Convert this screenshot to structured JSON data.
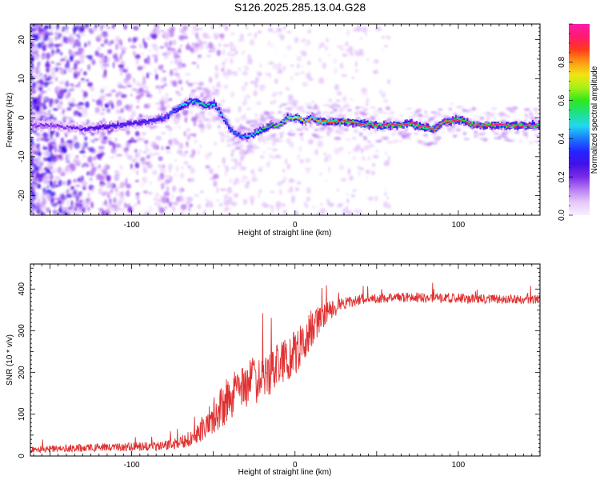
{
  "title": "S126.2025.285.13.04.G28",
  "colors": {
    "snr_line": "#e03030",
    "background": "#ffffff",
    "colormap": [
      "#f8f0ff",
      "#e6c9fb",
      "#b97ef3",
      "#7a2be8",
      "#4410e8",
      "#2424ff",
      "#1a78ff",
      "#22d8f0",
      "#1ee08a",
      "#2ee81a",
      "#a8f018",
      "#f0e414",
      "#ff9a14",
      "#ff3a1a",
      "#ff1a6e",
      "#ff1aa8"
    ]
  },
  "chart_data": [
    {
      "type": "heatmap",
      "title": "S126.2025.285.13.04.G28",
      "xlabel": "Height of straight line (km)",
      "ylabel": "Frequency (Hz)",
      "xlim": [
        -162,
        150
      ],
      "ylim": [
        -25,
        24
      ],
      "xticks": [
        -100,
        0,
        100
      ],
      "xtick_labels": [
        "-100",
        "0",
        "100"
      ],
      "yticks": [
        -20,
        -10,
        0,
        10,
        20
      ],
      "ytick_labels": [
        "-20",
        "-10",
        "0",
        "10",
        "20"
      ],
      "colorbar": {
        "label": "Normalized spectral amplitude",
        "range": [
          0,
          1
        ],
        "ticks": [
          0.0,
          0.2,
          0.4,
          0.6,
          0.8
        ],
        "tick_labels": [
          "0.0",
          "0.2",
          "0.4",
          "0.6",
          "0.8"
        ]
      },
      "ridge": {
        "x": [
          -150,
          -140,
          -130,
          -120,
          -110,
          -100,
          -90,
          -80,
          -75,
          -70,
          -65,
          -60,
          -55,
          -50,
          -45,
          -40,
          -35,
          -30,
          -25,
          -20,
          -15,
          -10,
          -5,
          0,
          5,
          10,
          15,
          20,
          30,
          40,
          50,
          60,
          70,
          75,
          80,
          85,
          90,
          95,
          100,
          110,
          120,
          130,
          140,
          150
        ],
        "freq": [
          -2,
          -2.5,
          -3,
          -2.5,
          -2,
          -1.5,
          -1,
          0,
          1.5,
          3,
          4,
          4,
          3,
          3.5,
          0.5,
          -3,
          -4.5,
          -5,
          -4,
          -3,
          -2,
          -2,
          0,
          0,
          -1,
          0,
          -1,
          -1,
          -1,
          -1.5,
          -2,
          -2,
          -1.5,
          -2,
          -2.5,
          -3,
          -1,
          -1,
          -0.5,
          -2,
          -2,
          -2,
          -2,
          -2
        ],
        "amplitude": [
          0.2,
          0.22,
          0.25,
          0.28,
          0.3,
          0.3,
          0.32,
          0.35,
          0.4,
          0.45,
          0.5,
          0.52,
          0.5,
          0.48,
          0.45,
          0.4,
          0.42,
          0.45,
          0.5,
          0.55,
          0.6,
          0.65,
          0.7,
          0.75,
          0.78,
          0.8,
          0.82,
          0.85,
          0.88,
          0.9,
          0.92,
          0.95,
          0.95,
          0.93,
          0.9,
          0.88,
          0.9,
          0.92,
          0.95,
          0.95,
          0.95,
          0.93,
          0.92,
          0.9
        ]
      }
    },
    {
      "type": "line",
      "xlabel": "Height of straight line (km)",
      "ylabel": "SNR (10 * v/v)",
      "xlim": [
        -162,
        150
      ],
      "ylim": [
        0,
        460
      ],
      "xticks": [
        -100,
        0,
        100
      ],
      "xtick_labels": [
        "-100",
        "0",
        "100"
      ],
      "yticks": [
        0,
        100,
        200,
        300,
        400
      ],
      "ytick_labels": [
        "0",
        "100",
        "200",
        "300",
        "400"
      ],
      "series": [
        {
          "name": "SNR",
          "x": [
            -162,
            -140,
            -120,
            -100,
            -90,
            -80,
            -70,
            -60,
            -50,
            -40,
            -30,
            -20,
            -10,
            0,
            10,
            20,
            30,
            40,
            50,
            60,
            80,
            100,
            120,
            150
          ],
          "mean": [
            15,
            18,
            20,
            22,
            23,
            25,
            32,
            55,
            95,
            140,
            170,
            190,
            215,
            245,
            305,
            345,
            365,
            375,
            378,
            380,
            380,
            378,
            376,
            375
          ],
          "noise": [
            8,
            9,
            10,
            10,
            11,
            12,
            15,
            25,
            45,
            55,
            60,
            55,
            55,
            55,
            45,
            25,
            15,
            12,
            12,
            12,
            12,
            12,
            11,
            10
          ]
        }
      ]
    }
  ]
}
